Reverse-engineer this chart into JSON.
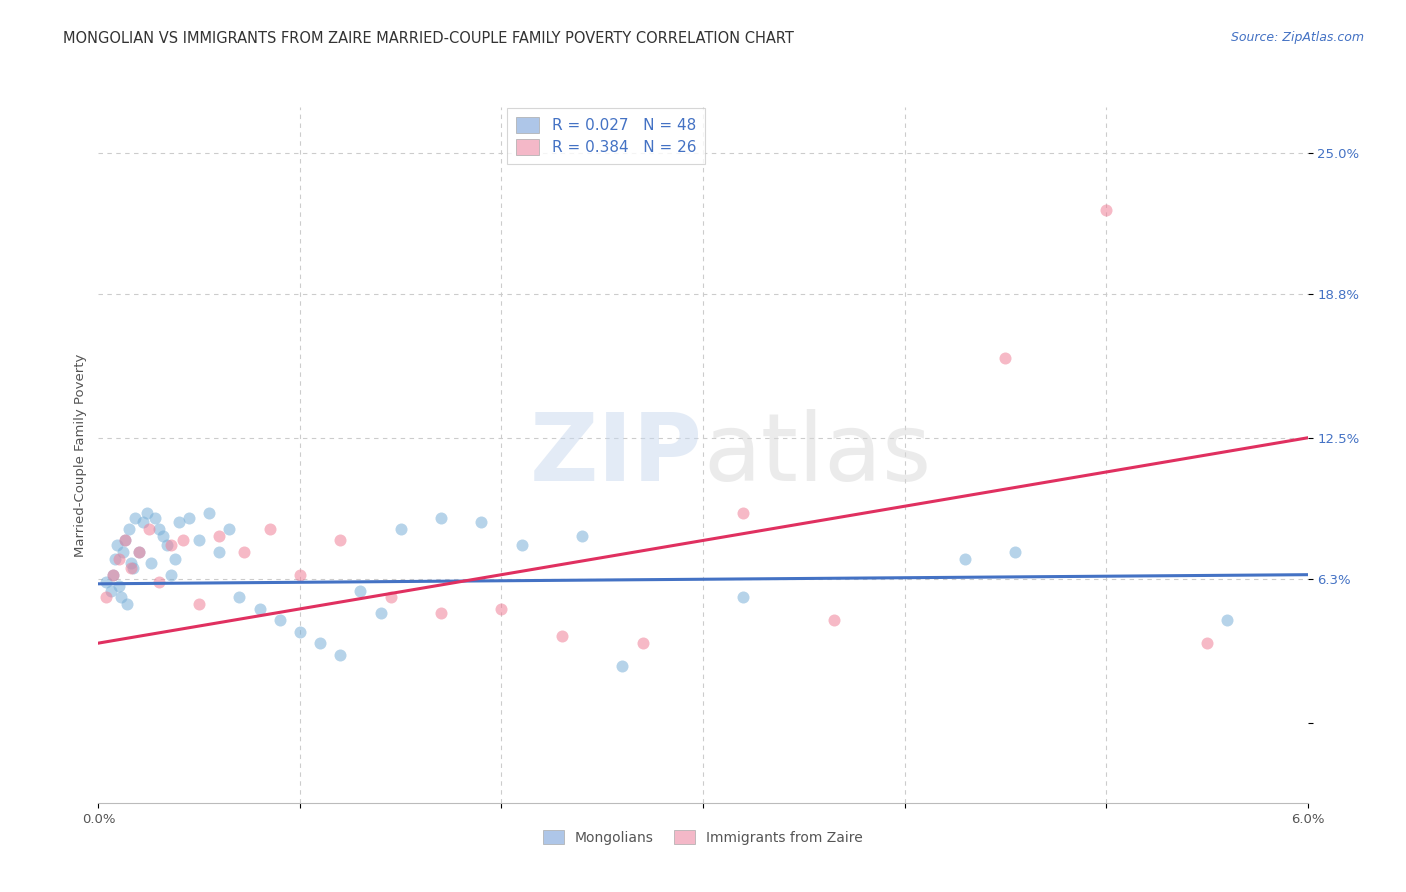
{
  "title": "MONGOLIAN VS IMMIGRANTS FROM ZAIRE MARRIED-COUPLE FAMILY POVERTY CORRELATION CHART",
  "source": "Source: ZipAtlas.com",
  "ylabel": "Married-Couple Family Poverty",
  "xlim": [
    0.0,
    6.0
  ],
  "ylim": [
    -3.5,
    27.0
  ],
  "y_tick_vals": [
    0.0,
    6.3,
    12.5,
    18.8,
    25.0
  ],
  "y_tick_labels": [
    "",
    "6.3%",
    "12.5%",
    "18.8%",
    "25.0%"
  ],
  "x_tick_vals": [
    0.0,
    1.0,
    2.0,
    3.0,
    4.0,
    5.0,
    6.0
  ],
  "x_tick_labels": [
    "0.0%",
    "",
    "",
    "",
    "",
    "",
    "6.0%"
  ],
  "legend_label1": "R = 0.027   N = 48",
  "legend_label2": "R = 0.384   N = 26",
  "legend_color1": "#aec6e8",
  "legend_color2": "#f4b8c8",
  "series1_color": "#7ab0d8",
  "series2_color": "#f08098",
  "line1_color": "#4472c4",
  "line2_color": "#e03060",
  "grid_color": "#cccccc",
  "background_color": "#ffffff",
  "dot_size": 75,
  "dot_alpha": 0.55,
  "title_fontsize": 10.5,
  "axis_label_fontsize": 9.5,
  "tick_fontsize": 9.5,
  "legend_fontsize": 11,
  "source_fontsize": 9,
  "mongolians_x": [
    0.04,
    0.06,
    0.07,
    0.08,
    0.09,
    0.1,
    0.11,
    0.12,
    0.13,
    0.14,
    0.15,
    0.16,
    0.17,
    0.18,
    0.2,
    0.22,
    0.24,
    0.26,
    0.28,
    0.3,
    0.32,
    0.34,
    0.36,
    0.38,
    0.4,
    0.45,
    0.5,
    0.55,
    0.6,
    0.65,
    0.7,
    0.8,
    0.9,
    1.0,
    1.1,
    1.2,
    1.3,
    1.4,
    1.5,
    1.7,
    1.9,
    2.1,
    2.4,
    2.6,
    3.2,
    4.3,
    4.55,
    5.6
  ],
  "mongolians_y": [
    6.2,
    5.8,
    6.5,
    7.2,
    7.8,
    6.0,
    5.5,
    7.5,
    8.0,
    5.2,
    8.5,
    7.0,
    6.8,
    9.0,
    7.5,
    8.8,
    9.2,
    7.0,
    9.0,
    8.5,
    8.2,
    7.8,
    6.5,
    7.2,
    8.8,
    9.0,
    8.0,
    9.2,
    7.5,
    8.5,
    5.5,
    5.0,
    4.5,
    4.0,
    3.5,
    3.0,
    5.8,
    4.8,
    8.5,
    9.0,
    8.8,
    7.8,
    8.2,
    2.5,
    5.5,
    7.2,
    7.5,
    4.5
  ],
  "zaire_x": [
    0.04,
    0.07,
    0.1,
    0.13,
    0.16,
    0.2,
    0.25,
    0.3,
    0.36,
    0.42,
    0.5,
    0.6,
    0.72,
    0.85,
    1.0,
    1.2,
    1.45,
    1.7,
    2.0,
    2.3,
    2.7,
    3.2,
    3.65,
    4.5,
    5.0,
    5.5
  ],
  "zaire_y": [
    5.5,
    6.5,
    7.2,
    8.0,
    6.8,
    7.5,
    8.5,
    6.2,
    7.8,
    8.0,
    5.2,
    8.2,
    7.5,
    8.5,
    6.5,
    8.0,
    5.5,
    4.8,
    5.0,
    3.8,
    3.5,
    9.2,
    4.5,
    16.0,
    22.5,
    3.5
  ],
  "line1_x": [
    0.0,
    6.0
  ],
  "line1_y": [
    6.1,
    6.5
  ],
  "line2_x": [
    0.0,
    6.0
  ],
  "line2_y": [
    3.5,
    12.5
  ]
}
